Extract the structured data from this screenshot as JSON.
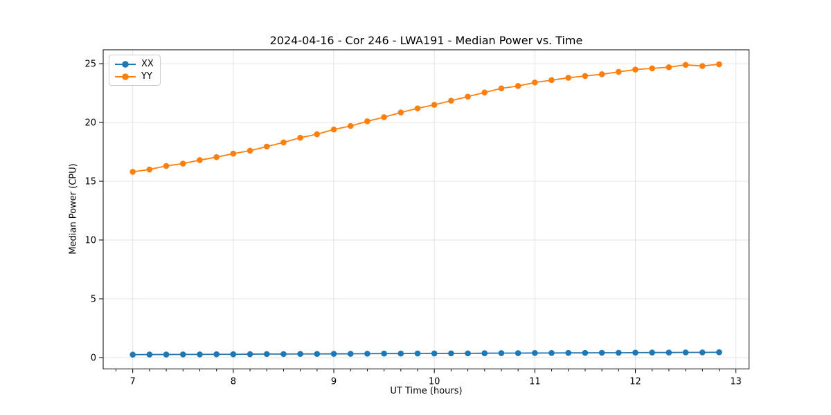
{
  "figure": {
    "title": "2024-04-16 - Cor 246 - LWA191 - Median Power vs. Time",
    "xlabel": "UT Time (hours)",
    "ylabel": "Median Power (CPU)"
  },
  "legend": {
    "position": "upper left",
    "items": [
      {
        "label": "XX",
        "color": "#1f77b4"
      },
      {
        "label": "YY",
        "color": "#ff7f0e"
      }
    ]
  },
  "chart_data": {
    "type": "line",
    "title": "2024-04-16 - Cor 246 - LWA191 - Median Power vs. Time",
    "xlabel": "UT Time (hours)",
    "ylabel": "Median Power (CPU)",
    "x": [
      7.0,
      7.1667,
      7.3333,
      7.5,
      7.6667,
      7.8333,
      8.0,
      8.1667,
      8.3333,
      8.5,
      8.6667,
      8.8333,
      9.0,
      9.1667,
      9.3333,
      9.5,
      9.6667,
      9.8333,
      10.0,
      10.1667,
      10.3333,
      10.5,
      10.6667,
      10.8333,
      11.0,
      11.1667,
      11.3333,
      11.5,
      11.6667,
      11.8333,
      12.0,
      12.1667,
      12.3333,
      12.5,
      12.6667,
      12.8333
    ],
    "series": [
      {
        "name": "XX",
        "color": "#1f77b4",
        "marker": "circle",
        "values": [
          0.25,
          0.26,
          0.26,
          0.27,
          0.27,
          0.28,
          0.28,
          0.29,
          0.3,
          0.3,
          0.31,
          0.31,
          0.32,
          0.32,
          0.33,
          0.34,
          0.34,
          0.35,
          0.35,
          0.36,
          0.36,
          0.37,
          0.38,
          0.38,
          0.39,
          0.39,
          0.4,
          0.4,
          0.41,
          0.41,
          0.42,
          0.43,
          0.43,
          0.44,
          0.44,
          0.45
        ]
      },
      {
        "name": "YY",
        "color": "#ff7f0e",
        "marker": "circle",
        "values": [
          15.8,
          16.0,
          16.3,
          16.5,
          16.8,
          17.05,
          17.35,
          17.6,
          17.95,
          18.3,
          18.7,
          19.0,
          19.4,
          19.7,
          20.1,
          20.45,
          20.85,
          21.2,
          21.5,
          21.85,
          22.2,
          22.55,
          22.9,
          23.1,
          23.4,
          23.6,
          23.8,
          23.95,
          24.1,
          24.3,
          24.5,
          24.6,
          24.7,
          24.9,
          24.8,
          24.95
        ]
      }
    ],
    "xlim": [
      6.706,
      13.131
    ],
    "ylim": [
      -0.96,
      26.18
    ],
    "xticks": [
      7,
      8,
      9,
      10,
      11,
      12,
      13
    ],
    "yticks": [
      0,
      5,
      10,
      15,
      20,
      25
    ],
    "x_minor_tick_step": 0.16667,
    "grid": true,
    "grid_color": "#e0e0e0",
    "axis_color": "#000000",
    "legend_position": "upper left"
  }
}
